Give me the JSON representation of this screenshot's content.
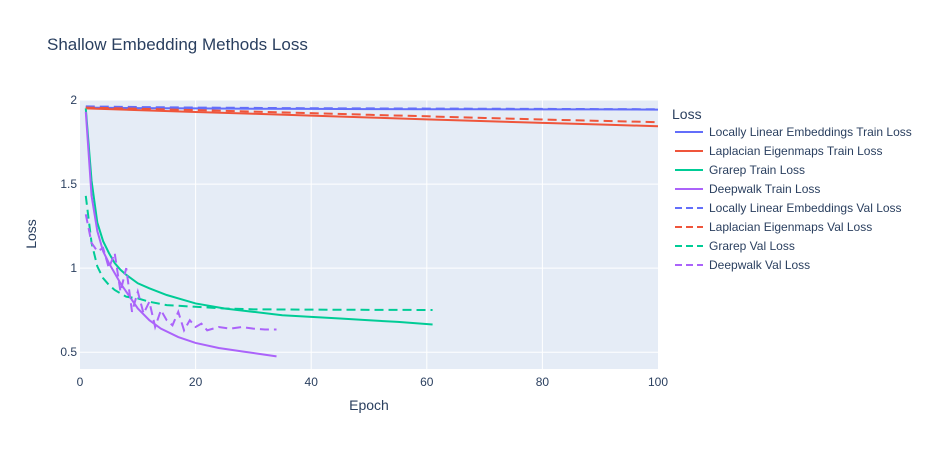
{
  "chart_data": {
    "type": "line",
    "title": "Shallow Embedding Methods Loss",
    "xlabel": "Epoch",
    "ylabel": "Loss",
    "xlim": [
      0,
      100
    ],
    "ylim": [
      0.4,
      2.0
    ],
    "xticks": [
      0,
      20,
      40,
      60,
      80,
      100
    ],
    "yticks": [
      0.5,
      1,
      1.5,
      2
    ],
    "xtick_labels": [
      "0",
      "20",
      "40",
      "60",
      "80",
      "100"
    ],
    "ytick_labels": [
      "0.5",
      "1",
      "1.5",
      "2"
    ],
    "grid": true,
    "legend_title": "Loss",
    "legend_position": "right",
    "series": [
      {
        "name": "Locally Linear Embeddings Train Loss",
        "color": "#636efa",
        "dash": "solid",
        "x": [
          1,
          10,
          20,
          30,
          40,
          50,
          60,
          70,
          80,
          90,
          100
        ],
        "y": [
          1.955,
          1.952,
          1.95,
          1.948,
          1.947,
          1.946,
          1.945,
          1.945,
          1.944,
          1.944,
          1.943
        ]
      },
      {
        "name": "Laplacian Eigenmaps Train Loss",
        "color": "#ef553b",
        "dash": "solid",
        "x": [
          1,
          10,
          20,
          30,
          40,
          50,
          60,
          70,
          80,
          90,
          100
        ],
        "y": [
          1.95,
          1.94,
          1.929,
          1.918,
          1.907,
          1.896,
          1.885,
          1.874,
          1.864,
          1.854,
          1.844
        ]
      },
      {
        "name": "Grarep Train Loss",
        "color": "#00cc96",
        "dash": "solid",
        "x": [
          1,
          2,
          3,
          4,
          5,
          6,
          7,
          8,
          10,
          12,
          15,
          18,
          20,
          25,
          30,
          35,
          40,
          45,
          50,
          55,
          61
        ],
        "y": [
          1.95,
          1.52,
          1.27,
          1.16,
          1.09,
          1.03,
          0.99,
          0.96,
          0.91,
          0.88,
          0.84,
          0.81,
          0.79,
          0.76,
          0.74,
          0.72,
          0.71,
          0.7,
          0.69,
          0.68,
          0.665
        ]
      },
      {
        "name": "Deepwalk Train Loss",
        "color": "#ab63fa",
        "dash": "solid",
        "x": [
          1,
          2,
          3,
          4,
          5,
          6,
          7,
          8,
          9,
          10,
          12,
          14,
          17,
          20,
          24,
          28,
          31,
          34
        ],
        "y": [
          1.93,
          1.43,
          1.22,
          1.1,
          1.03,
          0.97,
          0.91,
          0.86,
          0.81,
          0.76,
          0.69,
          0.64,
          0.59,
          0.555,
          0.525,
          0.505,
          0.49,
          0.475
        ]
      },
      {
        "name": "Locally Linear Embeddings Val Loss",
        "color": "#636efa",
        "dash": "dash",
        "x": [
          1,
          10,
          20,
          30,
          40,
          50,
          60,
          70,
          80,
          90,
          100
        ],
        "y": [
          1.962,
          1.958,
          1.955,
          1.953,
          1.951,
          1.95,
          1.949,
          1.948,
          1.947,
          1.946,
          1.945
        ]
      },
      {
        "name": "Laplacian Eigenmaps Val Loss",
        "color": "#ef553b",
        "dash": "dash",
        "x": [
          1,
          10,
          20,
          30,
          40,
          50,
          60,
          70,
          80,
          90,
          100
        ],
        "y": [
          1.955,
          1.948,
          1.94,
          1.931,
          1.922,
          1.912,
          1.903,
          1.893,
          1.884,
          1.876,
          1.868
        ]
      },
      {
        "name": "Grarep Val Loss",
        "color": "#00cc96",
        "dash": "dash",
        "x": [
          1,
          2,
          3,
          4,
          5,
          6,
          7,
          8,
          10,
          12,
          15,
          20,
          25,
          30,
          40,
          50,
          61
        ],
        "y": [
          1.43,
          1.15,
          1.01,
          0.94,
          0.9,
          0.87,
          0.85,
          0.83,
          0.82,
          0.8,
          0.78,
          0.77,
          0.76,
          0.755,
          0.753,
          0.752,
          0.751
        ]
      },
      {
        "name": "Deepwalk Val Loss",
        "color": "#ab63fa",
        "dash": "dash",
        "x": [
          1,
          2,
          3,
          4,
          5,
          6,
          7,
          8,
          9,
          10,
          11,
          12,
          13,
          14,
          15,
          16,
          17,
          18,
          19,
          20,
          21,
          22,
          24,
          26,
          28,
          30,
          32,
          34
        ],
        "y": [
          1.32,
          1.15,
          1.1,
          1.12,
          1.0,
          1.09,
          0.86,
          1.0,
          0.74,
          0.86,
          0.73,
          0.8,
          0.65,
          0.75,
          0.69,
          0.66,
          0.74,
          0.63,
          0.69,
          0.65,
          0.67,
          0.63,
          0.65,
          0.64,
          0.65,
          0.64,
          0.635,
          0.635
        ]
      }
    ]
  }
}
